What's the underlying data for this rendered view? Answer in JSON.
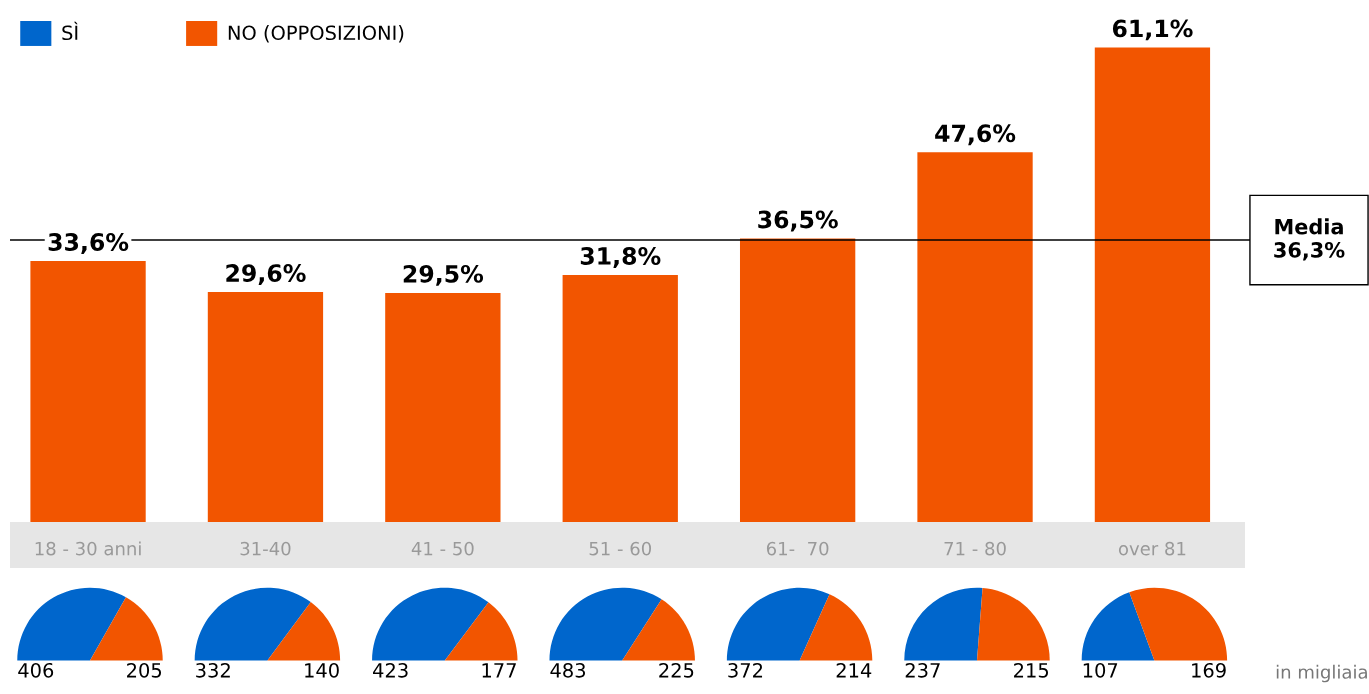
{
  "chart_data": [
    {
      "type": "bar",
      "categories": [
        "18 - 30 anni",
        "31-40",
        "41 - 50",
        "51 - 60",
        "61-  70",
        "71 - 80",
        "over 81"
      ],
      "values": [
        33.6,
        29.6,
        29.5,
        31.8,
        36.5,
        47.6,
        61.1
      ],
      "color": "#f25500",
      "value_labels": [
        "33,6%",
        "29,6%",
        "29,5%",
        "31,8%",
        "36,5%",
        "47,6%",
        "61,1%"
      ],
      "ref_lines": [
        {
          "axis": "y",
          "value": 36.3,
          "label": "Media\n36,3%",
          "color": "#000000"
        }
      ],
      "grid": false
    },
    {
      "type": "pie",
      "categories": [
        "SÌ",
        "NO (OPPOSIZIONI)"
      ],
      "values": [
        406,
        205
      ],
      "colors": [
        "#0066cc",
        "#f25500"
      ],
      "data_labels": true,
      "legend": "top"
    },
    {
      "type": "pie",
      "categories": [
        null,
        null
      ],
      "values": [
        332,
        140
      ],
      "colors": [
        "#0066cc",
        "#f25500"
      ],
      "data_labels": true
    },
    {
      "type": "pie",
      "categories": [
        null,
        null
      ],
      "values": [
        423,
        177
      ],
      "colors": [
        "#0066cc",
        "#f25500"
      ],
      "data_labels": true
    },
    {
      "type": "pie",
      "categories": [
        null,
        null
      ],
      "values": [
        483,
        225
      ],
      "colors": [
        "#0066cc",
        "#f25500"
      ],
      "data_labels": true
    },
    {
      "type": "pie",
      "categories": [
        null,
        null
      ],
      "values": [
        372,
        214
      ],
      "colors": [
        "#0066cc",
        "#f25500"
      ],
      "data_labels": true
    },
    {
      "type": "pie",
      "categories": [
        null,
        null
      ],
      "values": [
        237,
        215
      ],
      "colors": [
        "#0066cc",
        "#f25500"
      ],
      "data_labels": true
    },
    {
      "type": "pie",
      "categories": [
        null,
        null
      ],
      "values": [
        107,
        169
      ],
      "colors": [
        "#0066cc",
        "#f25500"
      ],
      "data_labels": true,
      "annotations": [
        "in migliaia"
      ]
    }
  ]
}
